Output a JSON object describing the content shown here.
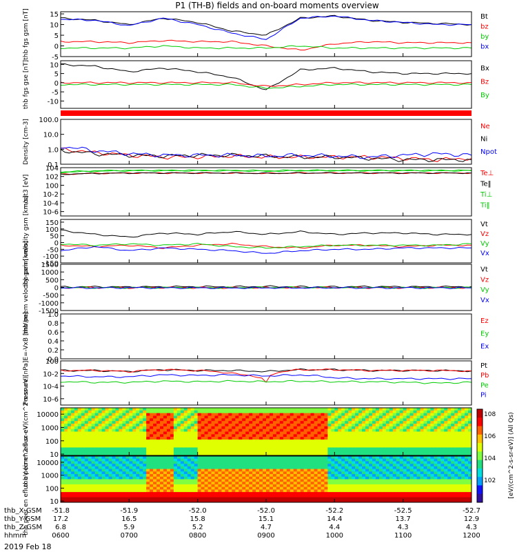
{
  "title": "P1 (TH-B) fields and on-board moments overview",
  "date_label": "2019 Feb 18",
  "colorbar_label": "[eV/(cm^2-s-sr-eV)] (All Qs)",
  "ephemeris": {
    "row_labels": [
      "thb_X-GSM",
      "thb_Y-GSM",
      "thb_Z-GSM",
      "hhmm"
    ],
    "columns": [
      [
        "-51.8",
        "17.2",
        "6.8",
        "0600"
      ],
      [
        "-51.9",
        "16.5",
        "5.9",
        "0700"
      ],
      [
        "-52.0",
        "15.8",
        "5.2",
        "0800"
      ],
      [
        "-52.0",
        "15.1",
        "4.7",
        "0900"
      ],
      [
        "-52.2",
        "14.4",
        "4.4",
        "1000"
      ],
      [
        "-52.5",
        "13.7",
        "4.3",
        "1100"
      ],
      [
        "-52.7",
        "12.9",
        "4.3",
        "1200"
      ]
    ]
  },
  "chart_data": [
    {
      "type": "line",
      "ylabel": "thb fgs gsm [nT]",
      "ylim": [
        -5,
        16
      ],
      "yticks": [
        "15",
        "10",
        "5",
        "0",
        "-5"
      ],
      "x": [
        "0600",
        "0630",
        "0700",
        "0730",
        "0800",
        "0830",
        "0900",
        "0930",
        "1000",
        "1030",
        "1100",
        "1130",
        "1200"
      ],
      "series": [
        {
          "name": "Bt",
          "color": "#000000",
          "values": [
            13,
            12,
            10,
            13,
            11,
            7,
            5,
            13,
            14,
            12,
            11,
            10.5,
            10
          ]
        },
        {
          "name": "bz",
          "color": "#ff0000",
          "values": [
            2,
            2,
            1.5,
            2.5,
            2,
            2,
            0,
            -2,
            1,
            2,
            1.5,
            1.5,
            1.5
          ]
        },
        {
          "name": "by",
          "color": "#00cc00",
          "values": [
            -1,
            -1,
            -1,
            0,
            -1,
            -1,
            -1,
            0,
            -1,
            -1,
            -1,
            -1,
            -1
          ]
        },
        {
          "name": "bx",
          "color": "#0000ff",
          "values": [
            12.5,
            12,
            9.5,
            13,
            10,
            6,
            3,
            13,
            14,
            12,
            11,
            10,
            10
          ]
        }
      ]
    },
    {
      "type": "line",
      "ylabel": "thb fgs gse [nT]",
      "ylim": [
        -14,
        12
      ],
      "yticks": [
        "10",
        "5",
        "0",
        "-5",
        "-10"
      ],
      "x": [
        "0600",
        "0630",
        "0700",
        "0730",
        "0800",
        "0830",
        "0900",
        "0930",
        "1000",
        "1030",
        "1100",
        "1130",
        "1200"
      ],
      "series": [
        {
          "name": "Bx",
          "color": "#000000",
          "values": [
            10,
            9,
            6,
            8,
            6,
            3,
            -4,
            7,
            8,
            6,
            5,
            5,
            5
          ]
        },
        {
          "name": "Bz",
          "color": "#ff0000",
          "values": [
            0,
            0,
            0,
            0,
            0,
            0,
            -2,
            -1,
            0,
            0,
            0,
            0,
            0
          ]
        },
        {
          "name": "By",
          "color": "#00cc00",
          "values": [
            -1,
            -1,
            -1,
            -1,
            -1,
            -1,
            -3,
            -2,
            -1,
            -1,
            -1,
            -1,
            -1
          ]
        }
      ]
    },
    {
      "type": "line",
      "ylabel": "Density [cm-3]",
      "yscale": "log",
      "ylim": [
        0.1,
        100
      ],
      "yticks": [
        "100.0",
        "10.0",
        "1.0",
        "0.1"
      ],
      "x": [
        "0600",
        "0630",
        "0700",
        "0730",
        "0800",
        "0830",
        "0900",
        "0930",
        "1000",
        "1030",
        "1100",
        "1130",
        "1200"
      ],
      "series": [
        {
          "name": "Ne",
          "color": "#ff0000",
          "values": [
            1.0,
            0.6,
            0.4,
            0.3,
            0.3,
            0.35,
            0.3,
            0.3,
            0.3,
            0.3,
            0.25,
            0.2,
            0.25
          ]
        },
        {
          "name": "Ni",
          "color": "#000000",
          "values": [
            0.8,
            0.5,
            0.4,
            0.35,
            0.4,
            0.4,
            0.35,
            0.3,
            0.3,
            0.25,
            0.2,
            0.2,
            0.2
          ]
        },
        {
          "name": "Npot",
          "color": "#0000ff",
          "values": [
            1.5,
            0.8,
            0.5,
            0.4,
            0.4,
            0.4,
            0.35,
            0.4,
            0.35,
            0.3,
            0.4,
            0.5,
            0.4
          ]
        }
      ]
    },
    {
      "type": "line",
      "ylabel": "moat3 [eV]",
      "yscale": "log",
      "ylim": [
        1e-07,
        10000.0
      ],
      "yticks": [
        "10^4",
        "10^2",
        "10^0",
        "10^-2",
        "10^-4",
        "10^-6"
      ],
      "x": [
        "0600",
        "0630",
        "0700",
        "0730",
        "0800",
        "0830",
        "0900",
        "0930",
        "1000",
        "1030",
        "1100",
        "1130",
        "1200"
      ],
      "series": [
        {
          "name": "Te⊥",
          "color": "#ff0000",
          "values": [
            300,
            500,
            600,
            600,
            600,
            600,
            500,
            600,
            600,
            600,
            600,
            600,
            600
          ]
        },
        {
          "name": "Te‖",
          "color": "#000000",
          "values": [
            300,
            500,
            600,
            600,
            600,
            600,
            500,
            600,
            600,
            600,
            600,
            600,
            600
          ]
        },
        {
          "name": "Ti⊥",
          "color": "#00cc00",
          "values": [
            800,
            1500,
            2000,
            2000,
            2000,
            2000,
            1500,
            2000,
            2000,
            2000,
            2000,
            2000,
            2000
          ]
        },
        {
          "name": "Ti‖",
          "color": "#00cc00",
          "values": [
            1000,
            2000,
            2500,
            2500,
            2500,
            2500,
            2000,
            2500,
            2500,
            2500,
            2500,
            2500,
            2500
          ]
        }
      ]
    },
    {
      "type": "line",
      "ylabel": "thb peim velocity gsm [km/s]",
      "ylim": [
        -150,
        170
      ],
      "yticks": [
        "150",
        "100",
        "50",
        "0",
        "-50",
        "-100",
        "-150"
      ],
      "x": [
        "0600",
        "0630",
        "0700",
        "0730",
        "0800",
        "0830",
        "0900",
        "0930",
        "1000",
        "1030",
        "1100",
        "1130",
        "1200"
      ],
      "series": [
        {
          "name": "Vt",
          "color": "#000000",
          "values": [
            90,
            60,
            40,
            70,
            60,
            80,
            60,
            80,
            60,
            70,
            70,
            60,
            60
          ]
        },
        {
          "name": "Vz",
          "color": "#ff0000",
          "values": [
            -20,
            -30,
            -20,
            -40,
            -20,
            -10,
            -30,
            -40,
            -20,
            -20,
            -30,
            -20,
            -20
          ]
        },
        {
          "name": "Vy",
          "color": "#00cc00",
          "values": [
            -10,
            -20,
            -10,
            -20,
            -10,
            -30,
            -40,
            -30,
            -20,
            -20,
            -20,
            -20,
            -10
          ]
        },
        {
          "name": "Vx",
          "color": "#0000ff",
          "values": [
            -60,
            -30,
            -60,
            -40,
            -50,
            -60,
            -80,
            -60,
            -50,
            -50,
            -40,
            -40,
            -40
          ]
        }
      ]
    },
    {
      "type": "line",
      "ylabel": "thb peem velocity gsm [km/s]",
      "ylim": [
        -1500,
        1500
      ],
      "yticks": [
        "1500",
        "1000",
        "500",
        "0",
        "-500",
        "-1000",
        "-1500"
      ],
      "x": [
        "0600",
        "0630",
        "0700",
        "0730",
        "0800",
        "0830",
        "0900",
        "0930",
        "1000",
        "1030",
        "1100",
        "1130",
        "1200"
      ],
      "series": [
        {
          "name": "Vt",
          "color": "#000000",
          "values": [
            30,
            40,
            30,
            40,
            50,
            40,
            60,
            40,
            40,
            50,
            40,
            40,
            50
          ]
        },
        {
          "name": "Vz",
          "color": "#ff0000",
          "values": [
            -20,
            -10,
            -20,
            -10,
            -20,
            -30,
            -20,
            -20,
            -10,
            -20,
            -20,
            -10,
            -20
          ]
        },
        {
          "name": "Vy",
          "color": "#00cc00",
          "values": [
            -10,
            -20,
            -10,
            -10,
            -20,
            -20,
            -10,
            -10,
            -20,
            -10,
            -10,
            -20,
            -10
          ]
        },
        {
          "name": "Vx",
          "color": "#0000ff",
          "values": [
            -30,
            -30,
            -20,
            -30,
            -30,
            -40,
            -30,
            -30,
            -20,
            -30,
            -30,
            -30,
            -30
          ]
        }
      ]
    },
    {
      "type": "line",
      "ylabel": "E=-VxB [mV/m]",
      "ylim": [
        0,
        1
      ],
      "yticks": [
        "1.0",
        "0.8",
        "0.6",
        "0.4",
        "0.2",
        "0.0"
      ],
      "x": [],
      "series": [
        {
          "name": "Ez",
          "color": "#ff0000",
          "values": []
        },
        {
          "name": "Ey",
          "color": "#00cc00",
          "values": []
        },
        {
          "name": "Ex",
          "color": "#0000ff",
          "values": []
        }
      ]
    },
    {
      "type": "line",
      "ylabel": "Pressure [nPa]",
      "yscale": "log",
      "ylim": [
        1e-07,
        1
      ],
      "yticks": [
        "10^0",
        "10^-2",
        "10^-4",
        "10^-6"
      ],
      "x": [
        "0600",
        "0630",
        "0700",
        "0730",
        "0800",
        "0830",
        "0900",
        "0930",
        "1000",
        "1030",
        "1100",
        "1130",
        "1200"
      ],
      "series": [
        {
          "name": "Pt",
          "color": "#000000",
          "values": [
            0.03,
            0.03,
            0.02,
            0.04,
            0.03,
            0.03,
            0.02,
            0.04,
            0.04,
            0.03,
            0.03,
            0.03,
            0.025
          ]
        },
        {
          "name": "Pb",
          "color": "#ff0000",
          "values": [
            0.03,
            0.03,
            0.02,
            0.04,
            0.03,
            0.01,
            0.0003,
            0.04,
            0.04,
            0.03,
            0.03,
            0.03,
            0.025
          ]
        },
        {
          "name": "Pe",
          "color": "#00cc00",
          "values": [
            0.0005,
            0.0004,
            0.0004,
            0.0006,
            0.0005,
            0.0006,
            0.0005,
            0.0006,
            0.0005,
            0.0005,
            0.0004,
            0.0003,
            0.0004
          ]
        },
        {
          "name": "Pi",
          "color": "#0000ff",
          "values": [
            0.004,
            0.003,
            0.003,
            0.006,
            0.005,
            0.006,
            0.004,
            0.006,
            0.002,
            0.0015,
            0.0015,
            0.0015,
            0.0015
          ]
        }
      ]
    },
    {
      "type": "heatmap",
      "ylabel": "thb peir en eflux eV (cm^2-s-sr-eV)",
      "yscale": "log",
      "ylim": [
        8,
        30000
      ],
      "yticks": [
        "10000",
        "1000",
        "100",
        "10"
      ],
      "colorscale": "rainbow",
      "zlim_exp": [
        2,
        8
      ]
    },
    {
      "type": "heatmap",
      "ylabel": "thb peer en eflux eV (cm^2-s-sr-eV)",
      "yscale": "log",
      "ylim": [
        8,
        30000
      ],
      "yticks": [
        "10000",
        "1000",
        "100",
        "10"
      ],
      "colorscale": "rainbow",
      "zlim_exp": [
        2,
        8
      ]
    }
  ]
}
